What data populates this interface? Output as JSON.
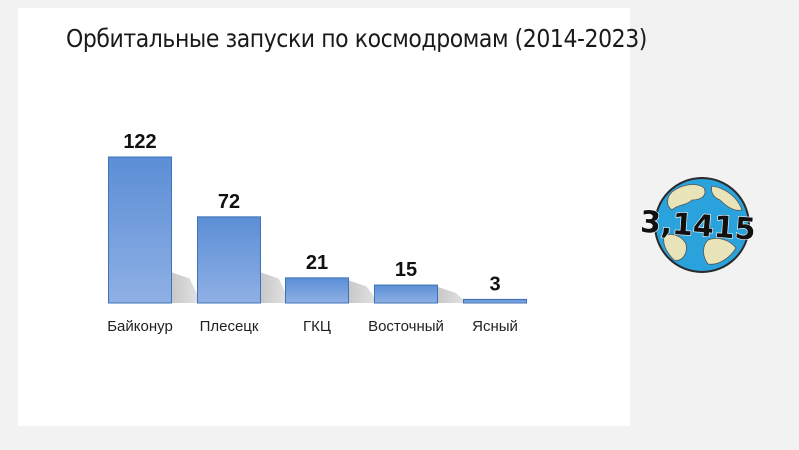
{
  "chart_data": {
    "type": "bar",
    "title": "Орбитальные запуски по космодромам (2014-2023)",
    "categories": [
      "Байконур",
      "Плесецк",
      "ГКЦ",
      "Восточный",
      "Ясный"
    ],
    "values": [
      122,
      72,
      21,
      15,
      3
    ],
    "xlabel": "",
    "ylabel": "",
    "ylim": [
      0,
      122
    ],
    "grid": false,
    "legend": "none",
    "bar_color": "#6a97d8",
    "bar_color_light": "#8fb3e6",
    "bar_border": "#3f72b8"
  },
  "logo": {
    "icon": "globe-icon",
    "text": "3,1415",
    "ocean_color": "#2aa2dc",
    "land_color": "#e8e3b8"
  }
}
